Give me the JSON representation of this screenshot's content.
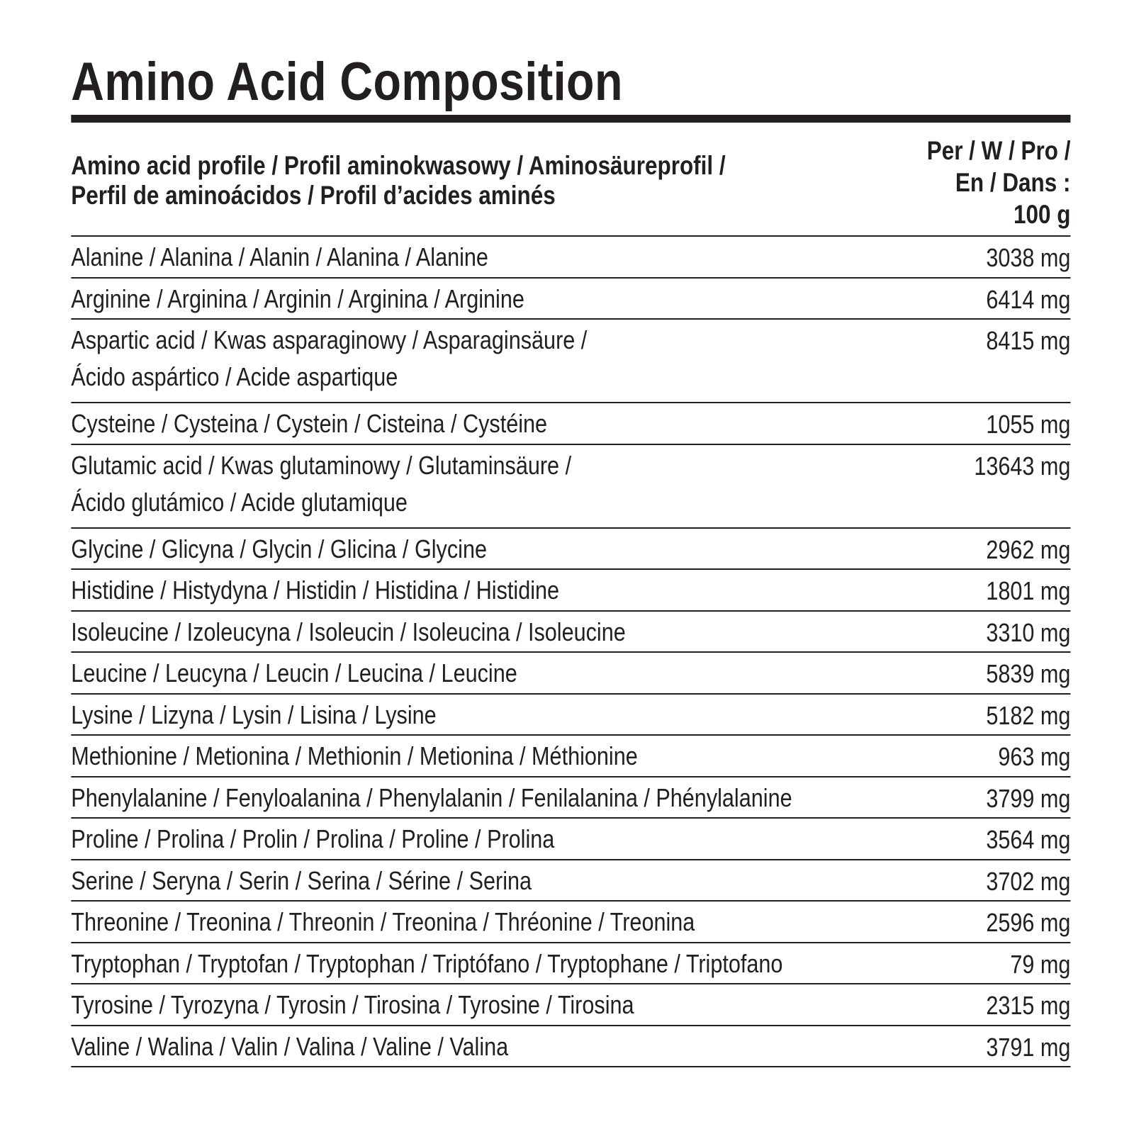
{
  "title": "Amino Acid Composition",
  "table": {
    "header": {
      "name": [
        "Amino acid profile / Profil aminokwasowy / Aminosäureprofil /",
        "Perfil de aminoácidos / Profil d’acides aminés"
      ],
      "value": [
        "Per / W / Pro /",
        "En / Dans :",
        "100 g"
      ]
    },
    "rows": [
      {
        "name": [
          "Alanine / Alanina / Alanin / Alanina / Alanine"
        ],
        "value": "3038 mg"
      },
      {
        "name": [
          "Arginine / Arginina / Arginin / Arginina / Arginine"
        ],
        "value": "6414 mg"
      },
      {
        "name": [
          "Aspartic acid / Kwas asparaginowy / Asparaginsäure /",
          "Ácido aspártico / Acide aspartique"
        ],
        "value": "8415 mg"
      },
      {
        "name": [
          "Cysteine / Cysteina / Cystein / Cisteina / Cystéine"
        ],
        "value": "1055 mg"
      },
      {
        "name": [
          "Glutamic acid / Kwas glutaminowy / Glutaminsäure /",
          "Ácido glutámico / Acide glutamique"
        ],
        "value": "13643 mg"
      },
      {
        "name": [
          "Glycine / Glicyna / Glycin / Glicina / Glycine"
        ],
        "value": "2962 mg"
      },
      {
        "name": [
          "Histidine / Histydyna / Histidin / Histidina / Histidine"
        ],
        "value": "1801 mg"
      },
      {
        "name": [
          "Isoleucine / Izoleucyna / Isoleucin / Isoleucina / Isoleucine"
        ],
        "value": "3310 mg"
      },
      {
        "name": [
          "Leucine / Leucyna / Leucin / Leucina / Leucine"
        ],
        "value": "5839 mg"
      },
      {
        "name": [
          "Lysine / Lizyna / Lysin / Lisina / Lysine"
        ],
        "value": "5182 mg"
      },
      {
        "name": [
          "Methionine / Metionina / Methionin / Metionina / Méthionine"
        ],
        "value": "963 mg"
      },
      {
        "name": [
          "Phenylalanine / Fenyloalanina / Phenylalanin / Fenilalanina / Phénylalanine"
        ],
        "value": "3799 mg"
      },
      {
        "name": [
          "Proline / Prolina / Prolin / Prolina / Proline / Prolina"
        ],
        "value": "3564 mg"
      },
      {
        "name": [
          "Serine / Seryna / Serin / Serina / Sérine / Serina"
        ],
        "value": "3702 mg"
      },
      {
        "name": [
          "Threonine / Treonina / Threonin / Treonina / Thréonine / Treonina"
        ],
        "value": "2596 mg"
      },
      {
        "name": [
          "Tryptophan / Tryptofan / Tryptophan / Triptófano / Tryptophane / Triptofano"
        ],
        "value": "79 mg"
      },
      {
        "name": [
          "Tyrosine / Tyrozyna / Tyrosin / Tirosina / Tyrosine / Tirosina"
        ],
        "value": "2315 mg"
      },
      {
        "name": [
          "Valine / Walina / Valin / Valina / Valine / Valina"
        ],
        "value": "3791 mg"
      }
    ]
  }
}
